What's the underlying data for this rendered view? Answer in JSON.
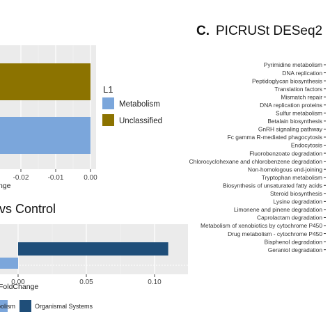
{
  "chart_data": [
    {
      "type": "bar",
      "orientation": "horizontal",
      "categories": [
        "Unclassified",
        "Metabolism"
      ],
      "values": [
        -0.027,
        -0.027
      ],
      "xlim": [
        -0.027,
        0.002
      ],
      "x_ticks": [
        "-0.02",
        "-0.01",
        "0.00"
      ],
      "xlabel_fragment": "nge",
      "legend_title": "L1",
      "legend": [
        {
          "name": "Metabolism",
          "color": "#7BA6DB"
        },
        {
          "name": "Unclassified",
          "color": "#8C7300"
        }
      ],
      "colors": {
        "Unclassified": "#8C7300",
        "Metabolism": "#7BA6DB"
      },
      "panel_background": "#EBEBEB",
      "grid": true
    },
    {
      "type": "bar",
      "orientation": "horizontal",
      "title_fragment": "vs Control",
      "series": [
        {
          "name": "Organismal Systems",
          "value": 0.11,
          "color": "#1F4E79"
        },
        {
          "name": "Metabolism",
          "value": -0.003,
          "color": "#7BA6DB"
        }
      ],
      "xlim": [
        -0.003,
        0.115
      ],
      "x_ticks": [
        "0.00",
        "0.05",
        "0.10"
      ],
      "xlabel_fragment": "FoldChange",
      "legend_fragments": [
        "bolism",
        "Organismal Systems"
      ],
      "legend_colors": [
        "#7BA6DB",
        "#1F4E79"
      ]
    },
    {
      "type": "bar",
      "orientation": "horizontal",
      "panel_label": "C.",
      "title_fragment": "PICRUSt DESeq2",
      "categories": [
        "Pyrimidine metabolism",
        "DNA replication",
        "Peptidoglycan biosynthesis",
        "Translation factors",
        "Mismatch repair",
        "DNA replication proteins",
        "Sulfur metabolism",
        "Betalain biosynthesis",
        "GnRH signaling pathway",
        "Fc gamma R-mediated phagocytosis",
        "Endocytosis",
        "Fluorobenzoate degradation",
        "Chlorocyclohexane and chlorobenzene degradation",
        "Non-homologous end-joining",
        "Tryptophan metabolism",
        "Biosynthesis of unsaturated fatty acids",
        "Steroid biosynthesis",
        "Lysine degradation",
        "Limonene and pinene degradation",
        "Caprolactam degradation",
        "Metabolism of xenobiotics by cytochrome P450",
        "Drug metabolism - cytochrome P450",
        "Bisphenol degradation",
        "Geraniol degradation"
      ]
    }
  ]
}
